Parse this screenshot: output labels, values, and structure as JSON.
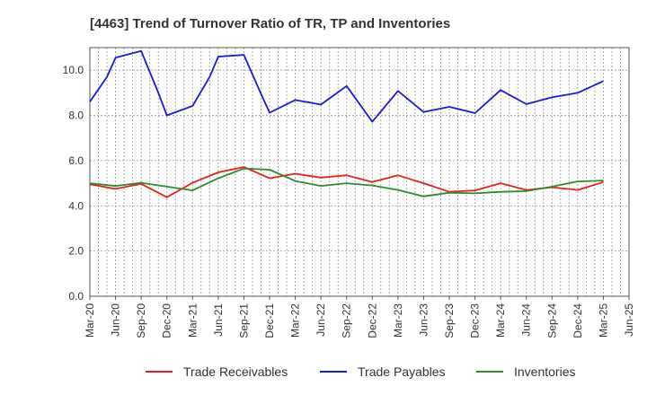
{
  "chart_data": {
    "type": "line",
    "title": "[4463]  Trend of Turnover Ratio of TR, TP and Inventories",
    "xlabel": "",
    "ylabel": "",
    "ylim": [
      0,
      11
    ],
    "yticks": [
      "0.0",
      "2.0",
      "4.0",
      "6.0",
      "8.0",
      "10.0"
    ],
    "grid": true,
    "legend_position": "bottom",
    "x": [
      "Mar-20",
      "Jun-20",
      "Sep-20",
      "Dec-20",
      "Mar-21",
      "Jun-21",
      "Sep-21",
      "Dec-21",
      "Mar-22",
      "Jun-22",
      "Sep-22",
      "Dec-22",
      "Mar-23",
      "Jun-23",
      "Sep-23",
      "Dec-23",
      "Mar-24",
      "Jun-24",
      "Sep-24",
      "Dec-24",
      "Mar-25",
      "Jun-25"
    ],
    "x_points": [
      "Mar-20",
      "Apr-20",
      "May-20",
      "Jun-20",
      "Jul-20",
      "Aug-20",
      "Sep-20",
      "Oct-20",
      "Nov-20",
      "Dec-20",
      "Jan-21",
      "Feb-21",
      "Mar-21",
      "Apr-21",
      "May-21",
      "Jun-21",
      "Jul-21",
      "Aug-21",
      "Sep-21",
      "Oct-21",
      "Nov-21",
      "Dec-21",
      "Jan-22",
      "Feb-22",
      "Mar-22",
      "Apr-22",
      "May-22",
      "Jun-22",
      "Jul-22",
      "Aug-22",
      "Sep-22",
      "Oct-22",
      "Nov-22",
      "Dec-22",
      "Jan-23",
      "Feb-23",
      "Mar-23",
      "Apr-23",
      "May-23",
      "Jun-23",
      "Jul-23",
      "Aug-23",
      "Sep-23",
      "Oct-23",
      "Nov-23",
      "Dec-23",
      "Jan-24",
      "Feb-24",
      "Mar-24",
      "Apr-24",
      "May-24",
      "Jun-24",
      "Jul-24",
      "Aug-24",
      "Sep-24",
      "Oct-24",
      "Nov-24",
      "Dec-24",
      "Jan-25",
      "Feb-25",
      "Mar-25",
      "Apr-25",
      "May-25",
      "Jun-25"
    ],
    "series": [
      {
        "name": "Trade Receivables",
        "color": "#e8201a",
        "points": [
          [
            "Mar-20",
            4.95
          ],
          [
            "Jun-20",
            4.75
          ],
          [
            "Sep-20",
            4.97
          ],
          [
            "Dec-20",
            4.38
          ],
          [
            "Mar-21",
            5.02
          ],
          [
            "Jun-21",
            5.48
          ],
          [
            "Sep-21",
            5.72
          ],
          [
            "Dec-21",
            5.22
          ],
          [
            "Mar-22",
            5.42
          ],
          [
            "Jun-22",
            5.25
          ],
          [
            "Sep-22",
            5.35
          ],
          [
            "Dec-22",
            5.05
          ],
          [
            "Mar-23",
            5.35
          ],
          [
            "Jun-23",
            5.0
          ],
          [
            "Sep-23",
            4.62
          ],
          [
            "Dec-23",
            4.68
          ],
          [
            "Mar-24",
            5.0
          ],
          [
            "Jun-24",
            4.7
          ],
          [
            "Sep-24",
            4.82
          ],
          [
            "Dec-24",
            4.7
          ],
          [
            "Mar-25",
            5.05
          ]
        ]
      },
      {
        "name": "Trade Payables",
        "color": "#1a1adb",
        "points": [
          [
            "Mar-20",
            8.6
          ],
          [
            "May-20",
            9.7
          ],
          [
            "Jun-20",
            10.55
          ],
          [
            "Sep-20",
            10.85
          ],
          [
            "Nov-20",
            9.0
          ],
          [
            "Dec-20",
            8.0
          ],
          [
            "Mar-21",
            8.42
          ],
          [
            "May-21",
            9.7
          ],
          [
            "Jun-21",
            10.6
          ],
          [
            "Sep-21",
            10.68
          ],
          [
            "Nov-21",
            8.95
          ],
          [
            "Dec-21",
            8.12
          ],
          [
            "Mar-22",
            8.68
          ],
          [
            "Jun-22",
            8.48
          ],
          [
            "Sep-22",
            9.3
          ],
          [
            "Dec-22",
            7.72
          ],
          [
            "Mar-23",
            9.08
          ],
          [
            "Jun-23",
            8.15
          ],
          [
            "Sep-23",
            8.38
          ],
          [
            "Dec-23",
            8.1
          ],
          [
            "Mar-24",
            9.12
          ],
          [
            "Jun-24",
            8.5
          ],
          [
            "Sep-24",
            8.8
          ],
          [
            "Dec-24",
            9.0
          ],
          [
            "Mar-25",
            9.52
          ]
        ]
      },
      {
        "name": "Inventories",
        "color": "#2e8b2e",
        "points": [
          [
            "Mar-20",
            5.0
          ],
          [
            "Jun-20",
            4.88
          ],
          [
            "Sep-20",
            5.02
          ],
          [
            "Dec-20",
            4.85
          ],
          [
            "Mar-21",
            4.68
          ],
          [
            "Jun-21",
            5.22
          ],
          [
            "Sep-21",
            5.65
          ],
          [
            "Dec-21",
            5.6
          ],
          [
            "Mar-22",
            5.1
          ],
          [
            "Jun-22",
            4.88
          ],
          [
            "Sep-22",
            5.0
          ],
          [
            "Dec-22",
            4.9
          ],
          [
            "Mar-23",
            4.7
          ],
          [
            "Jun-23",
            4.42
          ],
          [
            "Sep-23",
            4.58
          ],
          [
            "Dec-23",
            4.55
          ],
          [
            "Mar-24",
            4.62
          ],
          [
            "Jun-24",
            4.65
          ],
          [
            "Sep-24",
            4.85
          ],
          [
            "Dec-24",
            5.08
          ],
          [
            "Mar-25",
            5.12
          ]
        ]
      }
    ]
  }
}
